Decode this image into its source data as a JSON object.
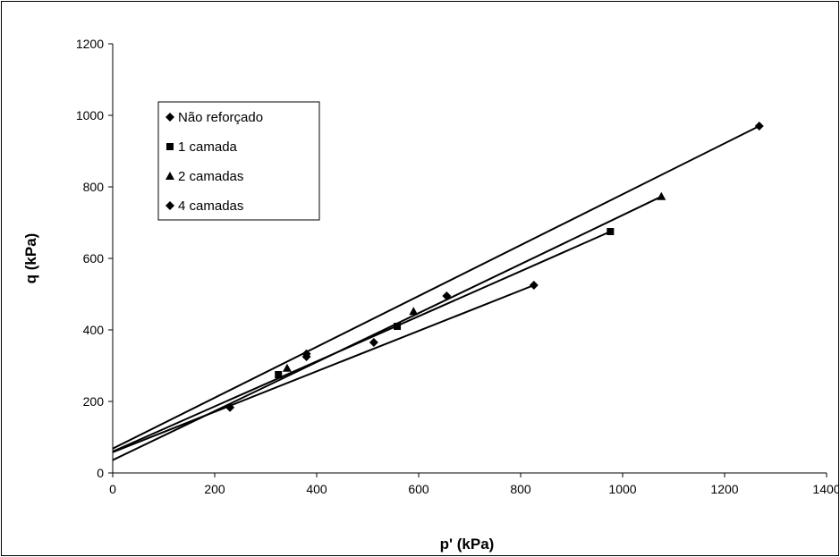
{
  "chart_data": {
    "type": "scatter",
    "xlabel": "p' (kPa)",
    "ylabel": "q (kPa)",
    "xlim": [
      0,
      1400
    ],
    "ylim": [
      0,
      1200
    ],
    "x_ticks": [
      0,
      200,
      400,
      600,
      800,
      1000,
      1200,
      1400
    ],
    "y_ticks": [
      0,
      200,
      400,
      600,
      800,
      1000,
      1200
    ],
    "grid": false,
    "legend_position": "top-left",
    "colors": {
      "marker": "#000000",
      "line": "#000000",
      "frame": "#000000"
    },
    "series": [
      {
        "name": "Não reforçado",
        "marker": "diamond",
        "x": [
          230,
          380,
          512,
          826
        ],
        "y": [
          183,
          333,
          365,
          525
        ],
        "trendline": {
          "x": [
            0,
            826
          ],
          "y": [
            58,
            525
          ]
        }
      },
      {
        "name": "1 camada",
        "marker": "square",
        "x": [
          325,
          558,
          976
        ],
        "y": [
          275,
          410,
          675
        ],
        "trendline": {
          "x": [
            0,
            976
          ],
          "y": [
            60,
            675
          ]
        }
      },
      {
        "name": "2 camadas",
        "marker": "triangle",
        "x": [
          342,
          590,
          1076
        ],
        "y": [
          293,
          452,
          773
        ],
        "trendline": {
          "x": [
            0,
            1076
          ],
          "y": [
            36,
            773
          ]
        }
      },
      {
        "name": "4 camadas",
        "marker": "diamond",
        "x": [
          380,
          655,
          1268
        ],
        "y": [
          325,
          495,
          970
        ],
        "trendline": {
          "x": [
            0,
            1268
          ],
          "y": [
            68,
            970
          ]
        }
      }
    ]
  }
}
